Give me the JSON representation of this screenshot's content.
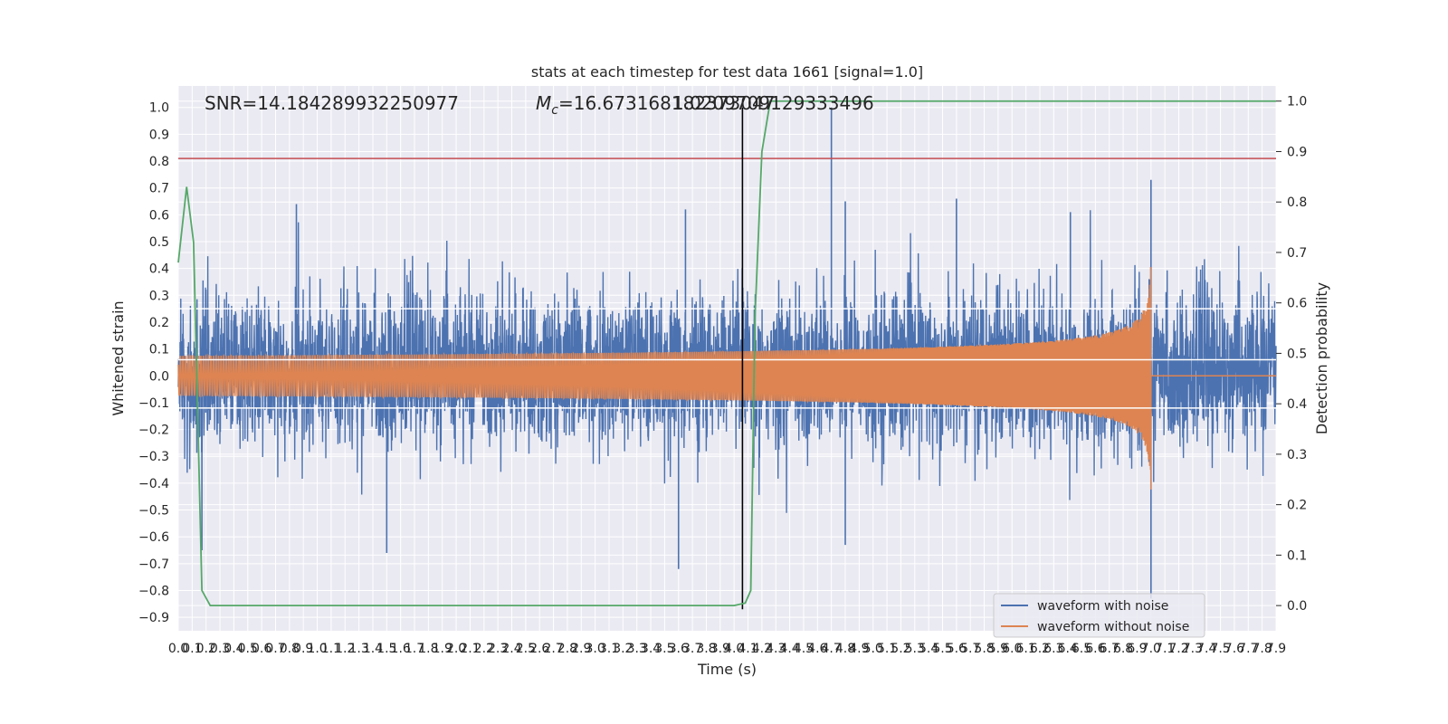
{
  "chart_data": {
    "type": "line",
    "title": "stats at each timestep for test data 1661 [signal=1.0]",
    "xlabel": "Time (s)",
    "ylabel_left": "Whitened strain",
    "ylabel_right": "Detection probability",
    "xlim": [
      0.0,
      7.9
    ],
    "ylim_left": [
      -0.95,
      1.08
    ],
    "ylim_right": [
      -0.05,
      1.03
    ],
    "x_tick_labels": [
      "0.0",
      "0.1",
      "0.2",
      "0.3",
      "0.4",
      "0.5",
      "0.6",
      "0.7",
      "0.8",
      "0.9",
      "1.0",
      "1.1",
      "1.2",
      "1.3",
      "1.4",
      "1.5",
      "1.6",
      "1.7",
      "1.8",
      "1.9",
      "2.0",
      "2.1",
      "2.2",
      "2.3",
      "2.4",
      "2.5",
      "2.6",
      "2.7",
      "2.8",
      "2.9",
      "3.0",
      "3.1",
      "3.2",
      "3.3",
      "3.4",
      "3.5",
      "3.6",
      "3.7",
      "3.8",
      "3.9",
      "4.0",
      "4.1",
      "4.2",
      "4.3",
      "4.4",
      "4.5",
      "4.6",
      "4.7",
      "4.8",
      "4.9",
      "5.0",
      "5.1",
      "5.2",
      "5.3",
      "5.4",
      "5.5",
      "5.6",
      "5.7",
      "5.8",
      "5.9",
      "6.0",
      "6.1",
      "6.2",
      "6.3",
      "6.4",
      "6.5",
      "6.6",
      "6.7",
      "6.8",
      "6.9",
      "7.0",
      "7.1",
      "7.2",
      "7.3",
      "7.4",
      "7.5",
      "7.6",
      "7.7",
      "7.8",
      "7.9"
    ],
    "y_ticks_left": [
      -0.9,
      -0.8,
      -0.7,
      -0.6,
      -0.5,
      -0.4,
      -0.3,
      -0.2,
      -0.1,
      0.0,
      0.1,
      0.2,
      0.3,
      0.4,
      0.5,
      0.6,
      0.7,
      0.8,
      0.9,
      1.0
    ],
    "y_tick_labels_left": [
      "−0.9",
      "−0.8",
      "−0.7",
      "−0.6",
      "−0.5",
      "−0.4",
      "−0.3",
      "−0.2",
      "−0.1",
      "0.0",
      "0.1",
      "0.2",
      "0.3",
      "0.4",
      "0.5",
      "0.6",
      "0.7",
      "0.8",
      "0.9",
      "1.0"
    ],
    "y_ticks_right": [
      0.0,
      0.1,
      0.2,
      0.3,
      0.4,
      0.5,
      0.6,
      0.7,
      0.8,
      0.9,
      1.0
    ],
    "y_tick_labels_right": [
      "0.0",
      "0.1",
      "0.2",
      "0.3",
      "0.4",
      "0.5",
      "0.6",
      "0.7",
      "0.8",
      "0.9",
      "1.0"
    ],
    "grid": true,
    "legend_position": "lower-right",
    "annotations": {
      "snr": "SNR=14.184289932250977",
      "mc_prefix": "M",
      "mc_sub": "c",
      "mc_value": "=16.673168182373047",
      "overlap_value": "1.0209709129333496"
    },
    "series": [
      {
        "name": "waveform with noise",
        "color": "#4c72b0",
        "axis": "left",
        "kind": "noise",
        "band_quantiles": [
          -0.12,
          0.25
        ],
        "spikes": [
          {
            "x": 0.85,
            "y": 0.64
          },
          {
            "x": 0.17,
            "y": -0.65
          },
          {
            "x": 1.5,
            "y": -0.66
          },
          {
            "x": 3.65,
            "y": 0.62
          },
          {
            "x": 3.6,
            "y": -0.72
          },
          {
            "x": 4.7,
            "y": 1.0
          },
          {
            "x": 4.8,
            "y": 0.65
          },
          {
            "x": 5.6,
            "y": 0.66
          },
          {
            "x": 6.42,
            "y": 0.61
          },
          {
            "x": 7.0,
            "y": 0.73
          },
          {
            "x": 7.0,
            "y": -0.83
          },
          {
            "x": 4.8,
            "y": -0.63
          }
        ]
      },
      {
        "name": "waveform without noise",
        "color": "#dd8452",
        "axis": "left",
        "kind": "chirp",
        "merger_time": 7.0,
        "peak_amplitude": 0.48
      },
      {
        "name": "detection probability",
        "color": "#55a868",
        "axis": "right",
        "x": [
          0.0,
          0.06,
          0.11,
          0.17,
          0.23,
          0.3,
          1.0,
          2.0,
          3.0,
          4.0,
          4.08,
          4.12,
          4.15,
          4.2,
          4.26,
          4.3,
          5.0,
          6.0,
          7.0,
          7.9
        ],
        "y": [
          0.68,
          0.83,
          0.72,
          0.03,
          0.0,
          0.0,
          0.0,
          0.0,
          0.0,
          0.0,
          0.005,
          0.03,
          0.57,
          0.9,
          1.0,
          1.0,
          1.0,
          1.0,
          1.0,
          1.0
        ]
      }
    ],
    "hlines": [
      {
        "axis": "left",
        "y": 0.81,
        "color": "#c44e52"
      },
      {
        "axis": "left",
        "y": 0.25,
        "color": "#ffffff"
      },
      {
        "axis": "left",
        "y": 0.06,
        "color": "#ffffff"
      },
      {
        "axis": "left",
        "y": -0.12,
        "color": "#ffffff"
      }
    ],
    "vlines": [
      {
        "x": 4.06,
        "color": "#000000"
      }
    ]
  }
}
